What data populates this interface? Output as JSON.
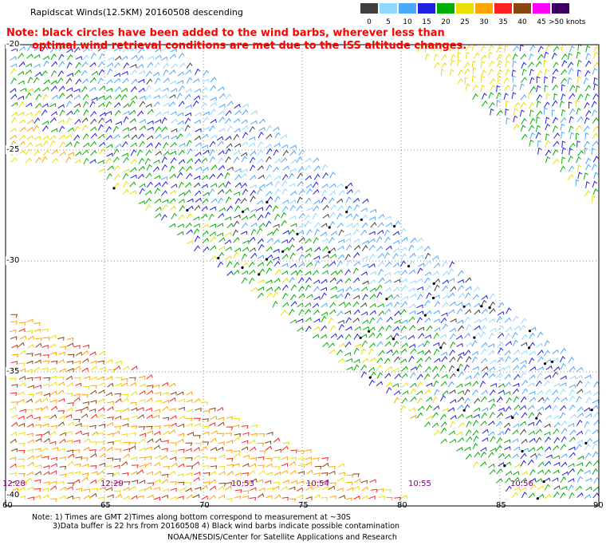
{
  "header": {
    "title": "Rapidscat Winds(12.5KM) 20160508 descending",
    "note_line1": "Note: black circles have been added to the wind barbs, wherever less than",
    "note_line2": "optimal wind retrieval conditions are met due to the ISS altitude changes."
  },
  "scale": {
    "labels": [
      "0",
      "5",
      "10",
      "15",
      "20",
      "25",
      "30",
      "35",
      "40",
      "45",
      ">50 knots"
    ],
    "colors": [
      "#404040",
      "#90d8ff",
      "#4aa8ff",
      "#2020e0",
      "#00b000",
      "#e8e000",
      "#ffa500",
      "#ff2020",
      "#8b4513",
      "#ff00ff",
      "#3a0060"
    ]
  },
  "map": {
    "lat_labels": [
      "-20",
      "-25",
      "-30",
      "-35",
      "-40"
    ],
    "lon_labels": [
      "60",
      "65",
      "70",
      "75",
      "80",
      "85",
      "90"
    ],
    "time_labels": [
      "12:28",
      "12:29",
      "10:53",
      "10:54",
      "10:55",
      "10:56"
    ]
  },
  "footer": {
    "line1": "Note: 1) Times are GMT 2)Times along bottom correspond to measurement at ~30S",
    "line2": "3)Data buffer is 22 hrs from 20160508 4) Black wind barbs indicate possible contamination",
    "credit": "NOAA/NESDIS/Center for Satellite Applications and Research"
  }
}
